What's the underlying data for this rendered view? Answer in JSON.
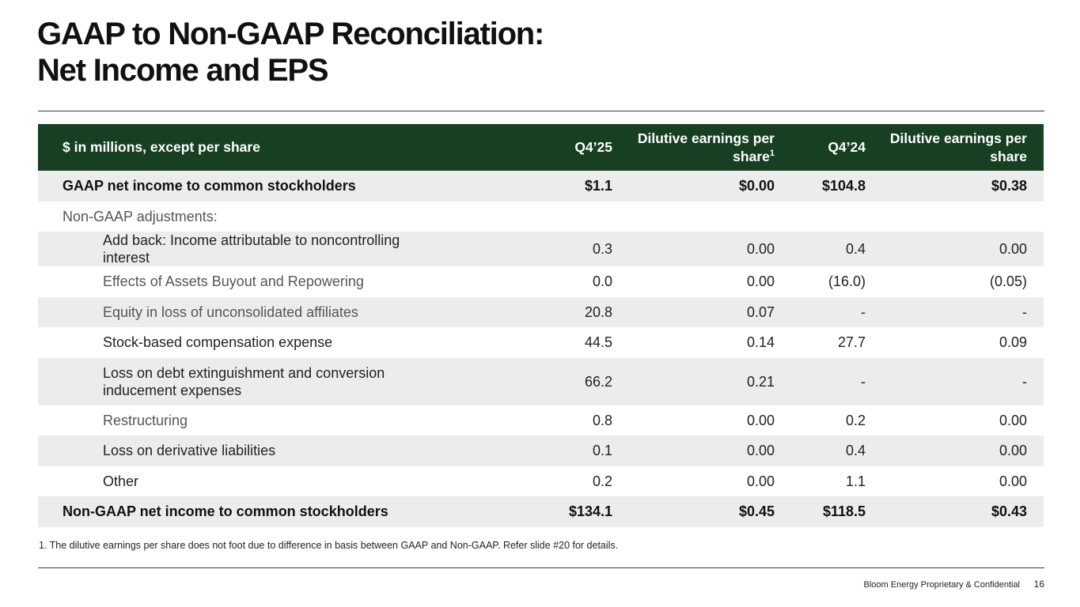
{
  "title": {
    "line1": "GAAP to Non-GAAP Reconciliation:",
    "line2": "Net Income and EPS"
  },
  "table": {
    "headers": {
      "label": "$ in millions, except per share",
      "q4_25": "Q4’25",
      "eps_q4_25": "Dilutive earnings per share",
      "eps_q4_25_sup": "1",
      "q4_24": "Q4’24",
      "eps_q4_24": "Dilutive earnings per share"
    },
    "rows": [
      {
        "label": "GAAP net income to common stockholders",
        "q4_25": "$1.1",
        "eps_q4_25": "$0.00",
        "q4_24": "$104.8",
        "eps_q4_24": "$0.38"
      },
      {
        "label": "Non-GAAP adjustments:",
        "q4_25": "",
        "eps_q4_25": "",
        "q4_24": "",
        "eps_q4_24": ""
      },
      {
        "label": "Add back: Income attributable to noncontrolling interest",
        "q4_25": "0.3",
        "eps_q4_25": "0.00",
        "q4_24": "0.4",
        "eps_q4_24": "0.00"
      },
      {
        "label": "Effects of Assets Buyout and Repowering",
        "q4_25": "0.0",
        "eps_q4_25": "0.00",
        "q4_24": "(16.0)",
        "eps_q4_24": "(0.05)"
      },
      {
        "label": "Equity in loss of unconsolidated affiliates",
        "q4_25": "20.8",
        "eps_q4_25": "0.07",
        "q4_24": "-",
        "eps_q4_24": "-"
      },
      {
        "label": "Stock-based compensation expense",
        "q4_25": "44.5",
        "eps_q4_25": "0.14",
        "q4_24": "27.7",
        "eps_q4_24": "0.09"
      },
      {
        "label": "Loss on debt extinguishment and conversion inducement expenses",
        "q4_25": "66.2",
        "eps_q4_25": "0.21",
        "q4_24": "-",
        "eps_q4_24": "-"
      },
      {
        "label": "Restructuring",
        "q4_25": "0.8",
        "eps_q4_25": "0.00",
        "q4_24": "0.2",
        "eps_q4_24": "0.00"
      },
      {
        "label": "Loss on derivative liabilities",
        "q4_25": "0.1",
        "eps_q4_25": "0.00",
        "q4_24": "0.4",
        "eps_q4_24": "0.00"
      },
      {
        "label": "Other",
        "q4_25": "0.2",
        "eps_q4_25": "0.00",
        "q4_24": "1.1",
        "eps_q4_24": "0.00"
      },
      {
        "label": "Non-GAAP net income to common stockholders",
        "q4_25": "$134.1",
        "eps_q4_25": "$0.45",
        "q4_24": "$118.5",
        "eps_q4_24": "$0.43"
      }
    ]
  },
  "footnote": "1. The dilutive earnings per share does not foot due to difference in basis between GAAP and Non-GAAP. Refer slide #20 for details.",
  "footer": {
    "text": "Bloom Energy Proprietary & Confidential",
    "page_number": "16"
  },
  "colors": {
    "header_bg": "#173f22",
    "row_shade": "#ececec",
    "text": "#222222"
  }
}
